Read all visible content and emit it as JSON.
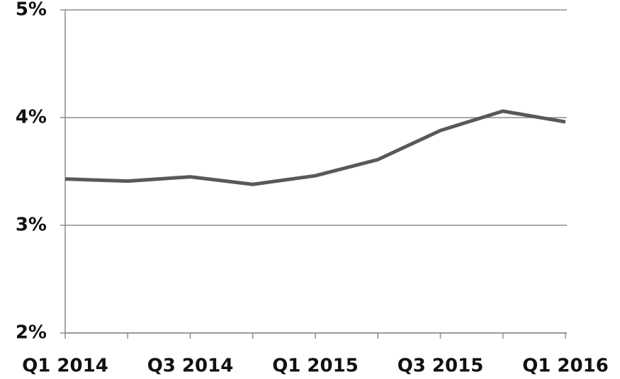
{
  "chart_data": {
    "type": "line",
    "categories": [
      "Q1 2014",
      null,
      "Q3 2014",
      null,
      "Q1 2015",
      null,
      "Q3 2015",
      null,
      "Q1 2016"
    ],
    "values": [
      3.43,
      3.41,
      3.45,
      3.38,
      3.46,
      3.61,
      3.88,
      4.06,
      3.96
    ],
    "color": "#595959",
    "ylim": [
      2,
      5
    ],
    "yticks": [
      {
        "value": 2,
        "label": "2%"
      },
      {
        "value": 3,
        "label": "3%"
      },
      {
        "value": 4,
        "label": "4%"
      },
      {
        "value": 5,
        "label": "5%"
      }
    ],
    "grid": true
  }
}
